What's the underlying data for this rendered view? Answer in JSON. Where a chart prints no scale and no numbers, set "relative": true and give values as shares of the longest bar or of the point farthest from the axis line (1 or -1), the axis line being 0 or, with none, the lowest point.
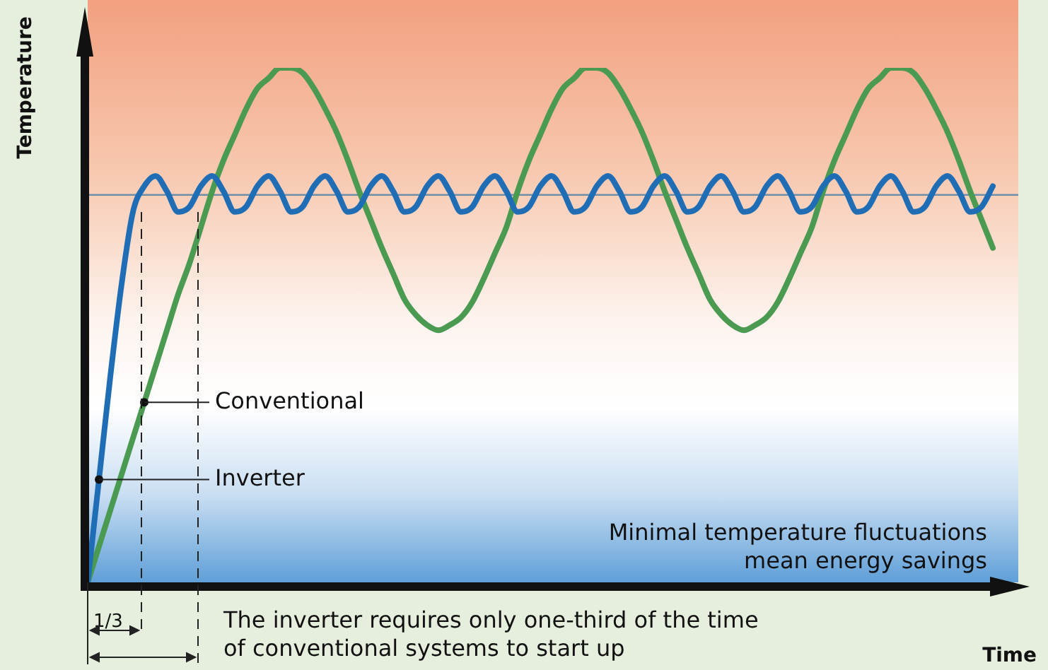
{
  "chart_data": {
    "type": "line",
    "relative": true,
    "xlabel": "Time",
    "ylabel": "Temperature",
    "marker": "none",
    "legend": false,
    "tick_labels": false,
    "categories": [
      null,
      null,
      null,
      null,
      null,
      null,
      null,
      null,
      null,
      null,
      null,
      null,
      null,
      null,
      null,
      null,
      null,
      null,
      null,
      null,
      null,
      null,
      null,
      null,
      null,
      null,
      null,
      null,
      null,
      null,
      null,
      null,
      null,
      null,
      null,
      null,
      null,
      null,
      null,
      null,
      null,
      null,
      null,
      null,
      null,
      null,
      null,
      null,
      null,
      null,
      null,
      null,
      null,
      null,
      null,
      null,
      null,
      null,
      null,
      null,
      null,
      null,
      null,
      null,
      null,
      null,
      null,
      null,
      null,
      null,
      null,
      null,
      null,
      null,
      null,
      null,
      null,
      null,
      null,
      null,
      null
    ],
    "series": [
      {
        "name": "Inverter",
        "color": "#1f6db5",
        "values": [
          0,
          0.2,
          0.4,
          0.58,
          0.72,
          0.77,
          0.79,
          0.76,
          0.72,
          0.73,
          0.77,
          0.79,
          0.76,
          0.72,
          0.73,
          0.77,
          0.79,
          0.76,
          0.72,
          0.73,
          0.77,
          0.79,
          0.76,
          0.72,
          0.73,
          0.77,
          0.79,
          0.76,
          0.72,
          0.73,
          0.77,
          0.79,
          0.76,
          0.72,
          0.73,
          0.77,
          0.79,
          0.76,
          0.72,
          0.73,
          0.77,
          0.79,
          0.76,
          0.72,
          0.73,
          0.77,
          0.79,
          0.76,
          0.72,
          0.73,
          0.77,
          0.79,
          0.76,
          0.72,
          0.73,
          0.77,
          0.79,
          0.76,
          0.72,
          0.73,
          0.77,
          0.79,
          0.76,
          0.72,
          0.73,
          0.77,
          0.79,
          0.76,
          0.72,
          0.73,
          0.77,
          0.79,
          0.76,
          0.72,
          0.73,
          0.77,
          0.79,
          0.76,
          0.72,
          0.73,
          0.77
        ]
      },
      {
        "name": "Conventional",
        "color": "#4a9a52",
        "values": [
          0,
          0.07,
          0.14,
          0.21,
          0.28,
          0.35,
          0.42,
          0.49,
          0.56,
          0.62,
          0.69,
          0.76,
          0.82,
          0.87,
          0.92,
          0.96,
          0.98,
          1.0,
          1.0,
          0.99,
          0.96,
          0.92,
          0.875,
          0.82,
          0.76,
          0.705,
          0.65,
          0.6,
          0.55,
          0.52,
          0.5,
          0.49,
          0.5,
          0.515,
          0.545,
          0.59,
          0.64,
          0.69,
          0.76,
          0.82,
          0.87,
          0.92,
          0.96,
          0.98,
          1.0,
          1.0,
          0.99,
          0.96,
          0.92,
          0.875,
          0.82,
          0.76,
          0.705,
          0.65,
          0.6,
          0.55,
          0.52,
          0.5,
          0.49,
          0.5,
          0.515,
          0.545,
          0.59,
          0.64,
          0.69,
          0.76,
          0.82,
          0.87,
          0.92,
          0.96,
          0.98,
          1.0,
          1.0,
          0.99,
          0.96,
          0.92,
          0.875,
          0.82,
          0.76,
          0.705,
          0.65
        ]
      }
    ],
    "ref_lines": [
      {
        "axis": "y",
        "value": 0.753,
        "color": "#6f8fa8"
      }
    ],
    "annotations": [
      "Minimal temperature fluctuations\nmean energy savings",
      "1/3",
      "The inverter requires only one-third of the time\nof conventional systems to start up"
    ]
  }
}
